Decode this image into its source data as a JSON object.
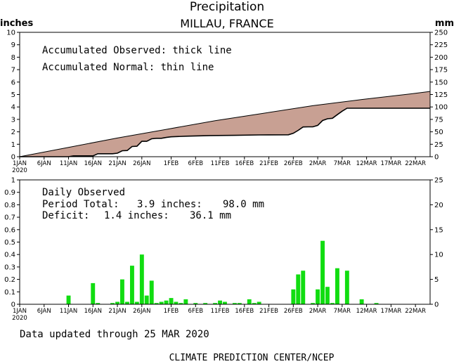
{
  "header": {
    "title": "Precipitation",
    "location": "MILLAU, FRANCE",
    "left_unit": "inches",
    "right_unit": "mm"
  },
  "top_panel": {
    "legend_line1": "Accumulated Observed: thick line",
    "legend_line2": "Accumulated Normal: thin line"
  },
  "bottom_panel": {
    "label_daily": "Daily Observed",
    "label_total_name": "Period Total:",
    "label_total_inches": "3.9 inches:",
    "label_total_mm": "98.0 mm",
    "label_deficit_name": "Deficit:",
    "label_deficit_inches": "1.4 inches:",
    "label_deficit_mm": "36.1 mm"
  },
  "footer": {
    "updated": "Data updated through 25 MAR 2020",
    "credit": "CLIMATE PREDICTION CENTER/NCEP"
  },
  "colors": {
    "fill": "#c8a093",
    "bar": "#11dd11",
    "axis": "#000000"
  },
  "chart_data": [
    {
      "type": "area",
      "name": "accumulated",
      "x_start": "1 JAN 2020",
      "x_end": "25 MAR 2020",
      "xtick_labels": [
        "1JAN",
        "6JAN",
        "11JAN",
        "16JAN",
        "21JAN",
        "26JAN",
        "1FEB",
        "6FEB",
        "11FEB",
        "16FEB",
        "21FEB",
        "26FEB",
        "2MAR",
        "7MAR",
        "12MAR",
        "17MAR",
        "22MAR"
      ],
      "xtick_days": [
        1,
        6,
        11,
        16,
        21,
        26,
        32,
        37,
        42,
        47,
        52,
        57,
        62,
        67,
        72,
        77,
        82
      ],
      "xtick_sublabel": "2020",
      "ylabel_left": "inches",
      "ylabel_right": "mm",
      "ylim_left": [
        0,
        10
      ],
      "yticks_left": [
        0,
        1,
        2,
        3,
        4,
        5,
        6,
        7,
        8,
        9,
        10
      ],
      "ylim_right": [
        0,
        250
      ],
      "yticks_right": [
        0,
        25,
        50,
        75,
        100,
        125,
        150,
        175,
        200,
        225,
        250
      ],
      "normal": {
        "x": [
          1,
          11,
          21,
          31,
          41,
          51,
          61,
          71,
          81,
          85
        ],
        "y": [
          0.0,
          0.75,
          1.5,
          2.2,
          2.9,
          3.5,
          4.1,
          4.6,
          5.05,
          5.25
        ]
      },
      "observed": {
        "x": [
          1,
          11,
          12,
          16,
          17,
          20,
          21,
          22,
          23,
          24,
          25,
          26,
          27,
          28,
          29,
          30,
          31,
          32,
          35,
          40,
          45,
          50,
          56,
          57,
          58,
          59,
          60,
          61,
          62,
          63,
          64,
          65,
          66,
          67,
          68,
          70,
          80,
          85
        ],
        "y": [
          0.0,
          0.0,
          0.07,
          0.07,
          0.24,
          0.24,
          0.28,
          0.48,
          0.5,
          0.82,
          0.84,
          1.24,
          1.24,
          1.44,
          1.48,
          1.48,
          1.55,
          1.6,
          1.65,
          1.7,
          1.72,
          1.75,
          1.76,
          1.88,
          2.12,
          2.39,
          2.4,
          2.4,
          2.52,
          2.91,
          3.05,
          3.09,
          3.38,
          3.66,
          3.9,
          3.9,
          3.9,
          3.9
        ]
      }
    },
    {
      "type": "bar",
      "name": "daily_observed",
      "x_start": "1 JAN 2020",
      "x_end": "25 MAR 2020",
      "xtick_labels": [
        "1JAN",
        "6JAN",
        "11JAN",
        "16JAN",
        "21JAN",
        "26JAN",
        "1FEB",
        "6FEB",
        "11FEB",
        "16FEB",
        "21FEB",
        "26FEB",
        "2MAR",
        "7MAR",
        "12MAR",
        "17MAR",
        "22MAR"
      ],
      "xtick_days": [
        1,
        6,
        11,
        16,
        21,
        26,
        32,
        37,
        42,
        47,
        52,
        57,
        62,
        67,
        72,
        77,
        82
      ],
      "xtick_sublabel": "2020",
      "ylim_left": [
        0,
        1
      ],
      "yticks_left": [
        0,
        0.1,
        0.2,
        0.3,
        0.4,
        0.5,
        0.6,
        0.7,
        0.8,
        0.9,
        1
      ],
      "ytick_labels_left": [
        "0",
        "0.1",
        "0.2",
        "0.3",
        "0.4",
        "0.5",
        "0.6",
        "0.7",
        "0.8",
        "0.9",
        "1"
      ],
      "ylim_right": [
        0,
        25
      ],
      "yticks_right": [
        0,
        5,
        10,
        15,
        20,
        25
      ],
      "x": [
        11,
        16,
        17,
        20,
        21,
        22,
        23,
        24,
        25,
        26,
        27,
        28,
        29,
        30,
        31,
        32,
        33,
        34,
        35,
        37,
        39,
        41,
        42,
        43,
        45,
        46,
        48,
        49,
        50,
        57,
        58,
        59,
        61,
        62,
        63,
        64,
        65,
        66,
        68,
        71,
        74
      ],
      "values": [
        0.07,
        0.17,
        0.01,
        0.01,
        0.02,
        0.2,
        0.02,
        0.31,
        0.02,
        0.4,
        0.07,
        0.19,
        0.01,
        0.02,
        0.03,
        0.05,
        0.02,
        0.01,
        0.04,
        0.01,
        0.01,
        0.01,
        0.03,
        0.02,
        0.01,
        0.01,
        0.04,
        0.01,
        0.02,
        0.12,
        0.24,
        0.27,
        0.01,
        0.12,
        0.51,
        0.14,
        0.01,
        0.29,
        0.27,
        0.04,
        0.01
      ]
    }
  ]
}
